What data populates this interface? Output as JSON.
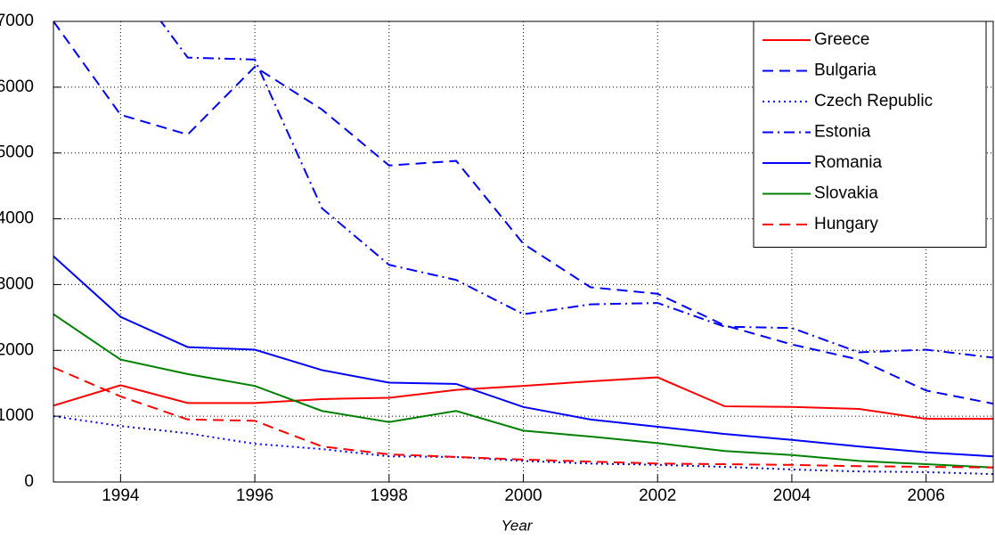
{
  "chart_data": {
    "type": "line",
    "xlabel": "Year",
    "x": [
      1993,
      1994,
      1995,
      1996,
      1997,
      1998,
      1999,
      2000,
      2001,
      2002,
      2003,
      2004,
      2005,
      2006,
      2007
    ],
    "xlim": [
      1993,
      2007
    ],
    "xticks": [
      1994,
      1996,
      1998,
      2000,
      2002,
      2004,
      2006
    ],
    "ylim": [
      0,
      7000
    ],
    "yticks": [
      0,
      1000,
      2000,
      3000,
      4000,
      5000,
      6000,
      7000
    ],
    "grid": true,
    "legend": "top-right",
    "series": [
      {
        "name": "Greece",
        "color": "#ff0000",
        "style": "-",
        "values": [
          1160,
          1470,
          1200,
          1200,
          1260,
          1280,
          1400,
          1460,
          1530,
          1590,
          1150,
          1140,
          1110,
          960,
          960
        ]
      },
      {
        "name": "Bulgaria",
        "color": "#0000ff",
        "style": "--",
        "values": [
          7000,
          5580,
          5280,
          6310,
          5660,
          4810,
          4880,
          3620,
          2960,
          2860,
          2380,
          2090,
          1860,
          1390,
          1190
        ]
      },
      {
        "name": "Czech Republic",
        "color": "#0000ff",
        "style": ":",
        "values": [
          1000,
          850,
          740,
          580,
          500,
          390,
          380,
          320,
          280,
          260,
          230,
          190,
          160,
          150,
          120
        ]
      },
      {
        "name": "Estonia",
        "color": "#0000ff",
        "style": "-.",
        "values": [
          null,
          7830,
          6450,
          6420,
          4160,
          3300,
          3070,
          2550,
          2700,
          2720,
          2360,
          2340,
          1970,
          2010,
          1890
        ]
      },
      {
        "name": "Romania",
        "color": "#0000ff",
        "style": "-",
        "values": [
          3430,
          2510,
          2050,
          2010,
          1700,
          1510,
          1490,
          1140,
          950,
          840,
          730,
          640,
          540,
          450,
          390
        ]
      },
      {
        "name": "Slovakia",
        "color": "#008000",
        "style": "-",
        "values": [
          2550,
          1860,
          1640,
          1460,
          1080,
          910,
          1080,
          780,
          690,
          590,
          470,
          410,
          320,
          270,
          220
        ]
      },
      {
        "name": "Hungary",
        "color": "#ff0000",
        "style": "--",
        "values": [
          1740,
          1300,
          950,
          930,
          540,
          420,
          380,
          340,
          310,
          280,
          270,
          260,
          240,
          230,
          220
        ]
      }
    ]
  }
}
